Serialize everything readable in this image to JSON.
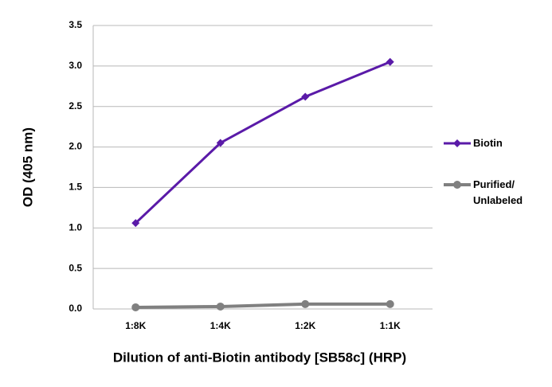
{
  "chart_data": {
    "type": "line",
    "y_label": "OD (405 nm)",
    "x_label": "Dilution of anti-Biotin antibody [SB58c] (HRP)",
    "categories": [
      "1:8K",
      "1:4K",
      "1:2K",
      "1:1K"
    ],
    "series": [
      {
        "name": "Biotin",
        "color": "#5a1aa8",
        "marker": "diamond",
        "values": [
          1.06,
          2.05,
          2.62,
          3.05
        ]
      },
      {
        "name": "Purified/\nUnlabeled",
        "color": "#808080",
        "marker": "circle",
        "values": [
          0.02,
          0.03,
          0.06,
          0.06
        ]
      }
    ],
    "ylim": [
      0,
      3.5
    ],
    "yticks": [
      {
        "value": 0,
        "label": "0.0"
      },
      0.5,
      {
        "value": 1,
        "label": "1.0"
      },
      1.5,
      {
        "value": 2,
        "label": "2.0"
      },
      2.5,
      {
        "value": 3,
        "label": "3.0"
      },
      3.5
    ],
    "grid": true
  }
}
